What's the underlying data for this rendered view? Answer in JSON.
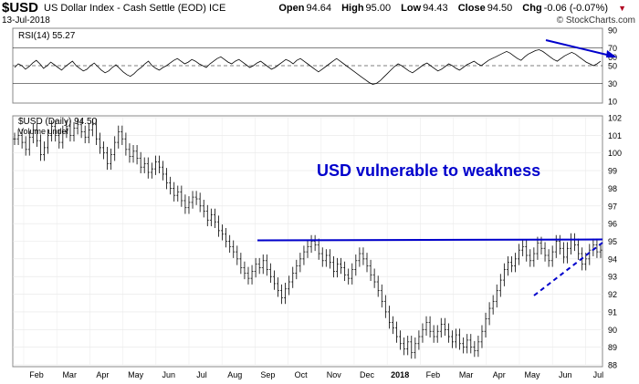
{
  "header": {
    "symbol": "$USD",
    "name": "US Dollar Index - Cash Settle (EOD) ICE",
    "date": "13-Jul-2018",
    "brand": "© StockCharts.com",
    "open_label": "Open",
    "open": "94.64",
    "high_label": "High",
    "high": "95.00",
    "low_label": "Low",
    "low": "94.43",
    "close_label": "Close",
    "close": "94.50",
    "chg_label": "Chg",
    "chg": "-0.06 (-0.07%)",
    "chg_arrow": "▼"
  },
  "colors": {
    "accent": "#0000cc",
    "negative": "#b00020",
    "rsi_fill": "#777777"
  },
  "chart_data": [
    {
      "type": "line",
      "panel": "indicator",
      "label": "RSI(14) 55.27",
      "series": [
        {
          "name": "RSI(14)",
          "values": [
            48,
            52,
            50,
            46,
            49,
            53,
            56,
            52,
            47,
            50,
            54,
            51,
            48,
            45,
            49,
            52,
            55,
            50,
            47,
            44,
            46,
            50,
            53,
            49,
            45,
            42,
            44,
            48,
            51,
            47,
            43,
            40,
            38,
            41,
            45,
            48,
            52,
            55,
            50,
            47,
            45,
            48,
            50,
            53,
            56,
            58,
            55,
            52,
            54,
            57,
            55,
            52,
            50,
            48,
            52,
            55,
            58,
            60,
            57,
            54,
            52,
            55,
            57,
            54,
            51,
            48,
            50,
            53,
            55,
            52,
            49,
            46,
            48,
            51,
            54,
            57,
            55,
            52,
            56,
            58,
            55,
            52,
            49,
            46,
            43,
            46,
            49,
            52,
            55,
            58,
            55,
            52,
            49,
            46,
            43,
            40,
            37,
            34,
            31,
            29,
            30,
            33,
            37,
            41,
            45,
            49,
            52,
            50,
            47,
            44,
            42,
            45,
            48,
            51,
            53,
            50,
            47,
            44,
            46,
            49,
            52,
            50,
            47,
            45,
            48,
            51,
            53,
            55,
            52,
            50,
            53,
            56,
            58,
            60,
            62,
            64,
            66,
            64,
            61,
            58,
            56,
            60,
            63,
            65,
            67,
            68,
            66,
            63,
            60,
            57,
            55,
            58,
            61,
            63,
            65,
            63,
            60,
            57,
            54,
            52,
            50,
            52,
            55
          ]
        }
      ],
      "ylim": [
        10,
        90
      ],
      "yticks": [
        "90",
        "70",
        "60",
        "50",
        "30",
        "10"
      ],
      "reference_lines": [
        70,
        50,
        30
      ]
    },
    {
      "type": "bar",
      "panel": "price",
      "label": "$USD (Daily) 94.50",
      "sublabel": "Volume undef",
      "series": [
        {
          "name": "$USD (Daily)",
          "values": [
            100.8,
            101.0,
            100.6,
            100.2,
            100.9,
            101.3,
            100.7,
            99.9,
            100.3,
            101.0,
            101.5,
            101.0,
            100.6,
            101.2,
            101.5,
            101.0,
            101.4,
            101.6,
            101.2,
            100.9,
            101.3,
            101.6,
            100.8,
            100.3,
            100.0,
            99.4,
            99.9,
            100.6,
            101.2,
            100.8,
            100.2,
            99.8,
            100.1,
            99.7,
            99.2,
            99.4,
            98.9,
            99.1,
            99.5,
            99.2,
            98.8,
            98.3,
            98.0,
            97.6,
            97.8,
            97.3,
            96.9,
            97.2,
            97.5,
            97.4,
            97.0,
            96.7,
            96.2,
            96.5,
            96.1,
            95.6,
            95.4,
            95.0,
            94.7,
            94.4,
            94.0,
            93.5,
            93.2,
            92.9,
            93.3,
            93.7,
            93.5,
            93.9,
            93.4,
            93.0,
            92.6,
            92.2,
            91.8,
            92.3,
            92.7,
            93.2,
            93.6,
            94.0,
            94.4,
            94.7,
            95.0,
            94.8,
            94.3,
            93.9,
            94.2,
            93.8,
            93.3,
            93.7,
            93.5,
            93.1,
            92.9,
            93.4,
            93.9,
            94.3,
            94.0,
            93.6,
            93.1,
            92.7,
            92.2,
            91.6,
            91.0,
            90.4,
            90.1,
            89.6,
            89.2,
            88.9,
            89.3,
            88.7,
            89.2,
            89.6,
            90.0,
            90.4,
            89.9,
            89.6,
            89.9,
            90.3,
            90.0,
            89.6,
            89.3,
            89.7,
            89.2,
            89.0,
            89.4,
            89.0,
            88.8,
            89.3,
            89.9,
            90.6,
            91.2,
            91.6,
            92.2,
            92.8,
            93.4,
            93.8,
            93.6,
            94.0,
            94.5,
            94.7,
            94.2,
            93.9,
            94.3,
            94.9,
            94.6,
            94.2,
            93.9,
            94.4,
            95.0,
            94.6,
            94.1,
            94.6,
            95.1,
            94.8,
            94.3,
            93.7,
            94.0,
            94.5,
            94.8,
            94.4,
            94.5
          ]
        }
      ],
      "ylim": [
        88,
        102
      ],
      "yticks": [
        "102",
        "101",
        "100",
        "99",
        "98",
        "97",
        "96",
        "95",
        "94",
        "93",
        "92",
        "91",
        "90",
        "89",
        "88"
      ],
      "xticks": [
        "Feb",
        "Mar",
        "Apr",
        "May",
        "Jun",
        "Jul",
        "Aug",
        "Sep",
        "Oct",
        "Nov",
        "Dec",
        "2018",
        "Feb",
        "Mar",
        "Apr",
        "May",
        "Jun",
        "Jul"
      ],
      "resistance": 95.05,
      "annotation": "USD vulnerable to weakness"
    }
  ]
}
